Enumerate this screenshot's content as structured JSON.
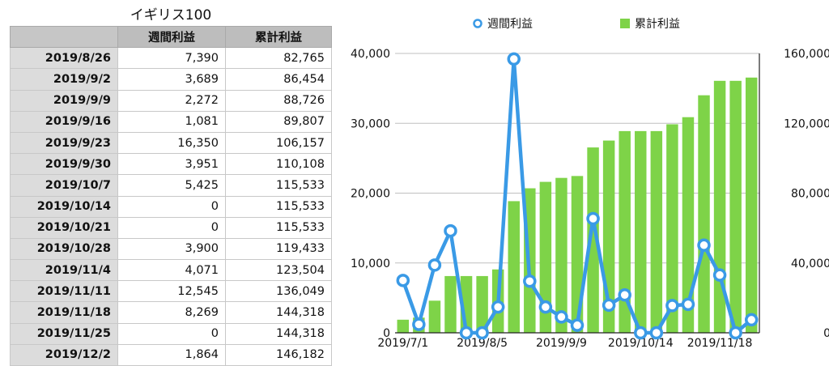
{
  "table": {
    "title": "イギリス100",
    "columns": [
      "",
      "週間利益",
      "累計利益"
    ],
    "rows": [
      {
        "date": "2019/8/26",
        "weekly": "7,390",
        "cumulative": "82,765"
      },
      {
        "date": "2019/9/2",
        "weekly": "3,689",
        "cumulative": "86,454"
      },
      {
        "date": "2019/9/9",
        "weekly": "2,272",
        "cumulative": "88,726"
      },
      {
        "date": "2019/9/16",
        "weekly": "1,081",
        "cumulative": "89,807"
      },
      {
        "date": "2019/9/23",
        "weekly": "16,350",
        "cumulative": "106,157"
      },
      {
        "date": "2019/9/30",
        "weekly": "3,951",
        "cumulative": "110,108"
      },
      {
        "date": "2019/10/7",
        "weekly": "5,425",
        "cumulative": "115,533"
      },
      {
        "date": "2019/10/14",
        "weekly": "0",
        "cumulative": "115,533"
      },
      {
        "date": "2019/10/21",
        "weekly": "0",
        "cumulative": "115,533"
      },
      {
        "date": "2019/10/28",
        "weekly": "3,900",
        "cumulative": "119,433"
      },
      {
        "date": "2019/11/4",
        "weekly": "4,071",
        "cumulative": "123,504"
      },
      {
        "date": "2019/11/11",
        "weekly": "12,545",
        "cumulative": "136,049"
      },
      {
        "date": "2019/11/18",
        "weekly": "8,269",
        "cumulative": "144,318"
      },
      {
        "date": "2019/11/25",
        "weekly": "0",
        "cumulative": "144,318"
      },
      {
        "date": "2019/12/2",
        "weekly": "1,864",
        "cumulative": "146,182"
      }
    ]
  },
  "chart_data": {
    "type": "bar+line",
    "x": [
      "2019/7/1",
      "2019/7/8",
      "2019/7/15",
      "2019/7/22",
      "2019/7/29",
      "2019/8/5",
      "2019/8/12",
      "2019/8/19",
      "2019/8/26",
      "2019/9/2",
      "2019/9/9",
      "2019/9/16",
      "2019/9/23",
      "2019/9/30",
      "2019/10/7",
      "2019/10/14",
      "2019/10/21",
      "2019/10/28",
      "2019/11/4",
      "2019/11/11",
      "2019/11/18",
      "2019/11/25",
      "2019/12/2"
    ],
    "x_tick_labels": [
      "2019/7/1",
      "2019/8/5",
      "2019/9/9",
      "2019/10/14",
      "2019/11/18"
    ],
    "series": [
      {
        "name": "週間利益",
        "kind": "line",
        "axis": "left",
        "color": "#3a9ae6",
        "values": [
          7500,
          1200,
          9700,
          14600,
          0,
          0,
          3700,
          39200,
          7390,
          3689,
          2272,
          1081,
          16350,
          3951,
          5425,
          0,
          0,
          3900,
          4071,
          12545,
          8269,
          0,
          1864
        ]
      },
      {
        "name": "累計利益",
        "kind": "bar",
        "axis": "right",
        "color": "#7ed348",
        "values": [
          7500,
          8700,
          18400,
          32500,
          32500,
          32500,
          36300,
          75400,
          82765,
          86454,
          88726,
          89807,
          106157,
          110108,
          115533,
          115533,
          115533,
          119433,
          123504,
          136049,
          144318,
          144318,
          146182
        ]
      }
    ],
    "yleft": {
      "ticks": [
        0,
        10000,
        20000,
        30000,
        40000
      ],
      "tick_labels": [
        "0",
        "10,000",
        "20,000",
        "30,000",
        "40,000"
      ],
      "lim": [
        0,
        40000
      ]
    },
    "yright": {
      "ticks": [
        0,
        40000,
        80000,
        120000,
        160000
      ],
      "tick_labels": [
        "0",
        "40,000",
        "80,000",
        "120,000",
        "160,000"
      ],
      "lim": [
        0,
        160000
      ]
    },
    "legend_position": "top",
    "grid": true
  }
}
